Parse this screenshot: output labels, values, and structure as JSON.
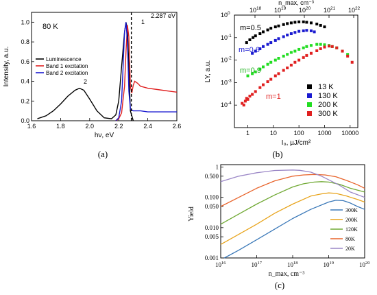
{
  "captions": {
    "a": "(a)",
    "b": "(b)",
    "c": "(c)"
  },
  "chart_data": [
    {
      "id": "a",
      "type": "line",
      "xlabel": "hν, eV",
      "ylabel": "Intensity, a.u.",
      "xlim": [
        1.6,
        2.6
      ],
      "ylim": [
        0,
        1.1
      ],
      "xticks": [
        "1.6",
        "1.8",
        "2.0",
        "2.2",
        "2.4",
        "2.6"
      ],
      "yticks": [
        "0.0",
        "0.2",
        "0.4",
        "0.6",
        "0.8",
        "1.0"
      ],
      "temperature_label": "80 K",
      "annotations": {
        "peak2": "2",
        "peak1": "1",
        "edge": "2.287 eV"
      },
      "edge_x": 2.287,
      "legend": [
        {
          "name": "Luminescence",
          "color": "#000000"
        },
        {
          "name": "Band 1 excitation",
          "color": "#e02020"
        },
        {
          "name": "Band 2 excitation",
          "color": "#1a1ad0"
        }
      ],
      "series": [
        {
          "name": "Luminescence",
          "color": "#000000",
          "x": [
            1.64,
            1.7,
            1.75,
            1.8,
            1.85,
            1.9,
            1.93,
            1.96,
            2.0,
            2.05,
            2.1,
            2.15,
            2.18,
            2.2,
            2.22,
            2.24,
            2.25,
            2.26,
            2.27,
            2.28,
            2.3
          ],
          "y": [
            0.02,
            0.05,
            0.1,
            0.17,
            0.25,
            0.31,
            0.33,
            0.31,
            0.22,
            0.1,
            0.03,
            0.02,
            0.06,
            0.2,
            0.55,
            0.9,
            1.0,
            0.93,
            0.55,
            0.1,
            0.0
          ]
        },
        {
          "name": "Band 1 excitation",
          "color": "#e02020",
          "x": [
            2.18,
            2.2,
            2.22,
            2.24,
            2.25,
            2.26,
            2.27,
            2.28,
            2.29,
            2.3,
            2.31,
            2.33,
            2.35,
            2.4,
            2.45,
            2.5,
            2.55,
            2.6
          ],
          "y": [
            0.0,
            0.02,
            0.08,
            0.35,
            0.7,
            0.97,
            0.85,
            0.35,
            0.28,
            0.36,
            0.4,
            0.38,
            0.35,
            0.33,
            0.32,
            0.31,
            0.3,
            0.29
          ]
        },
        {
          "name": "Band 2 excitation",
          "color": "#1a1ad0",
          "x": [
            2.18,
            2.2,
            2.22,
            2.23,
            2.24,
            2.25,
            2.26,
            2.27,
            2.28,
            2.3,
            2.32,
            2.35,
            2.4,
            2.45,
            2.5,
            2.55,
            2.6
          ],
          "y": [
            0.0,
            0.03,
            0.2,
            0.55,
            0.9,
            1.0,
            0.8,
            0.3,
            0.12,
            0.1,
            0.1,
            0.1,
            0.09,
            0.09,
            0.09,
            0.09,
            0.09
          ]
        }
      ]
    },
    {
      "id": "b",
      "type": "scatter",
      "xlabel": "I₀, µJ/cm²",
      "ylabel": "LY, a.u.",
      "top_xlabel": "n_max, cm⁻³",
      "xscale": "log",
      "yscale": "log",
      "xlim": [
        0.3,
        20000
      ],
      "ylim": [
        1e-05,
        1
      ],
      "xticks": [
        {
          "v": 1,
          "t": "1"
        },
        {
          "v": 10,
          "t": "10"
        },
        {
          "v": 100,
          "t": "100"
        },
        {
          "v": 1000,
          "t": "1000"
        },
        {
          "v": 10000,
          "t": "10000"
        }
      ],
      "yticks": [
        {
          "v": 1,
          "t": "10"
        },
        {
          "v": 0.1,
          "t": "10"
        },
        {
          "v": 0.01,
          "t": "10"
        },
        {
          "v": 0.001,
          "t": "10"
        },
        {
          "v": 0.0001,
          "t": "10"
        }
      ],
      "ytick_exponents": [
        "0",
        "-1",
        "-2",
        "-3",
        "-4"
      ],
      "top_ticks": [
        {
          "t": "10",
          "e": "18"
        },
        {
          "t": "10",
          "e": "19"
        },
        {
          "t": "10",
          "e": "20"
        },
        {
          "t": "10",
          "e": "21"
        },
        {
          "t": "10",
          "e": "22"
        }
      ],
      "slope_labels": [
        {
          "text": "m=0.5",
          "color": "#000000"
        },
        {
          "text": "m=0.6",
          "color": "#1a1ad0"
        },
        {
          "text": "m=0.9",
          "color": "#1ab01a"
        },
        {
          "text": "m=1",
          "color": "#e02020"
        }
      ],
      "legend": [
        {
          "name": "13 K",
          "color": "#000000"
        },
        {
          "name": "130 K",
          "color": "#1a1ad0"
        },
        {
          "name": "200 K",
          "color": "#22dd22"
        },
        {
          "name": "300 K",
          "color": "#e02020"
        }
      ],
      "series": [
        {
          "name": "13 K",
          "color": "#000000",
          "x": [
            0.9,
            1.2,
            1.6,
            2,
            3,
            4,
            6,
            8,
            12,
            16,
            25,
            35,
            50,
            70,
            100,
            150,
            200,
            300,
            500,
            700,
            1000
          ],
          "y": [
            0.06,
            0.08,
            0.1,
            0.12,
            0.15,
            0.18,
            0.22,
            0.26,
            0.3,
            0.33,
            0.38,
            0.42,
            0.45,
            0.48,
            0.5,
            0.5,
            0.48,
            0.45,
            0.4,
            0.35,
            0.3
          ]
        },
        {
          "name": "130 K",
          "color": "#1a1ad0",
          "x": [
            1.5,
            2,
            3,
            4,
            6,
            8,
            12,
            16,
            25,
            35,
            50,
            70,
            100,
            150,
            200,
            300,
            400
          ],
          "y": [
            0.02,
            0.025,
            0.032,
            0.04,
            0.05,
            0.06,
            0.075,
            0.09,
            0.11,
            0.13,
            0.15,
            0.17,
            0.19,
            0.2,
            0.21,
            0.2,
            0.18
          ]
        },
        {
          "name": "200 K",
          "color": "#22dd22",
          "x": [
            1,
            1.5,
            2,
            3,
            4,
            6,
            8,
            12,
            16,
            25,
            35,
            50,
            70,
            100,
            150,
            200,
            300,
            500,
            700,
            1000,
            1500,
            2000,
            3000,
            5000,
            8000
          ],
          "y": [
            0.002,
            0.0025,
            0.003,
            0.004,
            0.005,
            0.0065,
            0.008,
            0.01,
            0.012,
            0.015,
            0.018,
            0.022,
            0.025,
            0.03,
            0.035,
            0.04,
            0.045,
            0.05,
            0.05,
            0.048,
            0.045,
            0.04,
            0.035,
            0.025,
            0.018
          ]
        },
        {
          "name": "300 K",
          "color": "#e02020",
          "x": [
            0.6,
            0.7,
            0.8,
            0.9,
            1,
            1.2,
            1.5,
            2,
            3,
            4,
            6,
            8,
            12,
            16,
            25,
            35,
            50,
            70,
            100,
            150,
            200,
            300,
            500,
            700,
            1000,
            1500,
            2000,
            3000,
            5000,
            8000,
            12000
          ],
          "y": [
            0.00012,
            0.0001,
            0.00015,
            0.0002,
            0.00018,
            0.00025,
            0.0003,
            0.0004,
            0.0006,
            0.0008,
            0.0011,
            0.0014,
            0.002,
            0.0025,
            0.0035,
            0.0045,
            0.006,
            0.008,
            0.01,
            0.013,
            0.016,
            0.02,
            0.026,
            0.032,
            0.038,
            0.042,
            0.04,
            0.035,
            0.025,
            0.015,
            0.008
          ]
        }
      ]
    },
    {
      "id": "c",
      "type": "line",
      "xlabel": "n_max, cm⁻³",
      "ylabel": "Yield",
      "xscale": "log",
      "yscale": "log",
      "xlim": [
        1e+16,
        1e+20
      ],
      "ylim": [
        0.001,
        1.2
      ],
      "xticks": [
        {
          "t": "10",
          "e": "16"
        },
        {
          "t": "10",
          "e": "17"
        },
        {
          "t": "10",
          "e": "18"
        },
        {
          "t": "10",
          "e": "19"
        },
        {
          "t": "10",
          "e": "20"
        }
      ],
      "yticks": [
        {
          "v": 1,
          "t": "1"
        },
        {
          "v": 0.5,
          "t": "0.500"
        },
        {
          "v": 0.1,
          "t": "0.100"
        },
        {
          "v": 0.05,
          "t": "0.050"
        },
        {
          "v": 0.01,
          "t": "0.010"
        },
        {
          "v": 0.005,
          "t": "0.005"
        },
        {
          "v": 0.001,
          "t": "0.001"
        }
      ],
      "legend": [
        {
          "name": "300K",
          "color": "#3a78b8"
        },
        {
          "name": "200K",
          "color": "#e8a41c"
        },
        {
          "name": "120K",
          "color": "#6fa832"
        },
        {
          "name": "80K",
          "color": "#e8632a"
        },
        {
          "name": "20K",
          "color": "#9a86c6"
        }
      ],
      "series": [
        {
          "name": "300K",
          "color": "#3a78b8",
          "x": [
            16.1,
            16.5,
            17,
            17.5,
            18,
            18.5,
            19,
            19.2,
            19.4,
            19.6,
            19.8,
            20
          ],
          "y": [
            0.001,
            0.0018,
            0.004,
            0.009,
            0.02,
            0.04,
            0.07,
            0.08,
            0.078,
            0.065,
            0.05,
            0.04
          ]
        },
        {
          "name": "200K",
          "color": "#e8a41c",
          "x": [
            16,
            16.5,
            17,
            17.5,
            18,
            18.5,
            18.8,
            19,
            19.2,
            19.5,
            19.8,
            20
          ],
          "y": [
            0.0028,
            0.006,
            0.013,
            0.03,
            0.06,
            0.11,
            0.13,
            0.14,
            0.135,
            0.11,
            0.085,
            0.07
          ]
        },
        {
          "name": "120K",
          "color": "#6fa832",
          "x": [
            16,
            16.5,
            17,
            17.5,
            18,
            18.3,
            18.6,
            18.8,
            19,
            19.3,
            19.6,
            20
          ],
          "y": [
            0.013,
            0.028,
            0.06,
            0.12,
            0.22,
            0.28,
            0.32,
            0.33,
            0.32,
            0.27,
            0.2,
            0.15
          ]
        },
        {
          "name": "80K",
          "color": "#e8632a",
          "x": [
            16,
            16.5,
            17,
            17.5,
            18,
            18.3,
            18.6,
            18.9,
            19.2,
            19.5,
            19.8,
            20
          ],
          "y": [
            0.05,
            0.1,
            0.2,
            0.35,
            0.5,
            0.55,
            0.57,
            0.55,
            0.48,
            0.36,
            0.26,
            0.2
          ]
        },
        {
          "name": "20K",
          "color": "#9a86c6",
          "x": [
            16,
            16.5,
            17,
            17.5,
            18,
            18.2,
            18.5,
            18.8,
            19,
            19.3,
            19.6,
            20
          ],
          "y": [
            0.33,
            0.5,
            0.65,
            0.77,
            0.8,
            0.78,
            0.68,
            0.5,
            0.38,
            0.25,
            0.15,
            0.1
          ]
        }
      ]
    }
  ]
}
